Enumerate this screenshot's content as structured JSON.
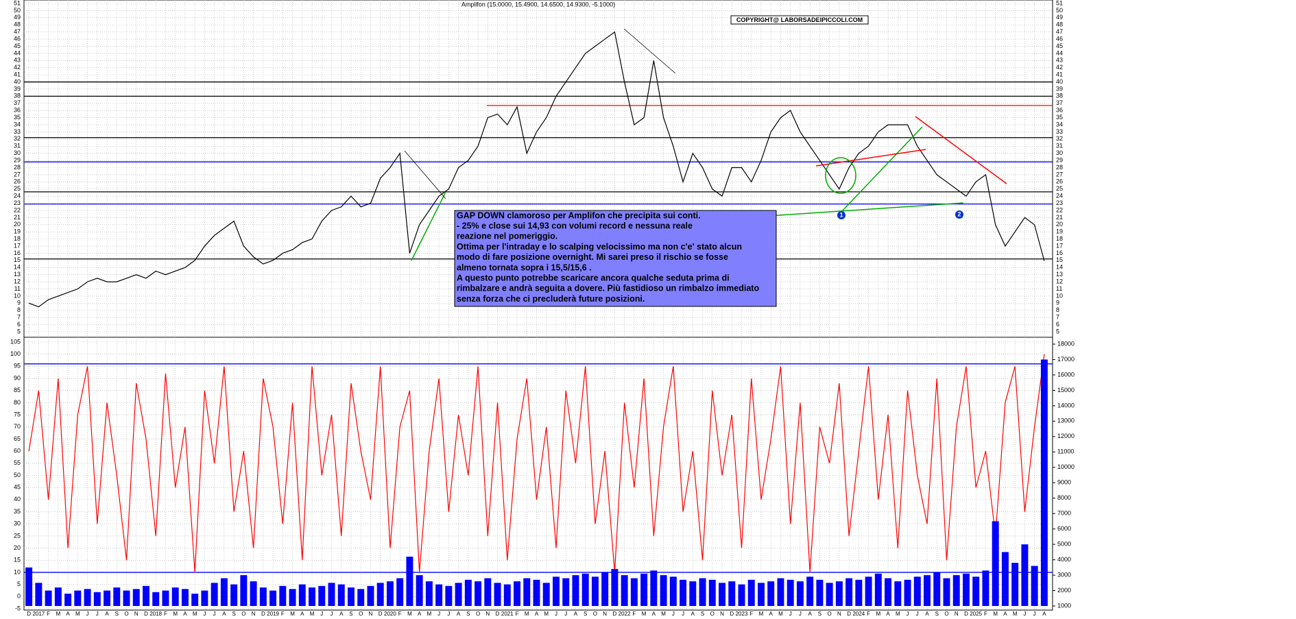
{
  "chart_data": [
    {
      "type": "line",
      "title": "Amplifon (15.0000, 15.4900, 14.6500, 14.9300, -5.1000)",
      "copyright": "COPYRIGHT@ LABORSADEIPICCOLI.COM",
      "categories": [
        "D",
        "2017",
        "F",
        "M",
        "A",
        "M",
        "J",
        "J",
        "A",
        "S",
        "O",
        "N",
        "D",
        "2018",
        "F",
        "M",
        "A",
        "M",
        "J",
        "J",
        "A",
        "S",
        "O",
        "N",
        "D",
        "2019",
        "F",
        "M",
        "A",
        "M",
        "J",
        "J",
        "A",
        "S",
        "O",
        "N",
        "D",
        "2020",
        "F",
        "M",
        "A",
        "M",
        "J",
        "J",
        "A",
        "S",
        "O",
        "N",
        "D",
        "2021",
        "F",
        "M",
        "A",
        "M",
        "J",
        "J",
        "A",
        "S",
        "O",
        "N",
        "D",
        "2022",
        "F",
        "M",
        "A",
        "M",
        "J",
        "J",
        "A",
        "S",
        "O",
        "N",
        "D",
        "2023",
        "F",
        "M",
        "A",
        "M",
        "J",
        "J",
        "A",
        "S",
        "O",
        "N",
        "D",
        "2024",
        "F",
        "M",
        "A",
        "M",
        "J",
        "J",
        "A",
        "S",
        "O",
        "N",
        "D",
        "2025",
        "F",
        "M",
        "A",
        "M",
        "J",
        "J",
        "A"
      ],
      "series": [
        {
          "name": "Amplifon",
          "color": "#000000",
          "values": [
            9,
            8.5,
            9.5,
            10,
            10.5,
            11,
            12,
            12.5,
            12,
            12,
            12.5,
            13,
            12.5,
            13.5,
            13,
            13.5,
            14,
            15,
            17,
            18.5,
            19.5,
            20.5,
            17,
            15.5,
            14.5,
            15,
            16,
            16.5,
            17.5,
            18,
            20.5,
            22,
            22.5,
            24,
            22.5,
            23,
            26.5,
            28,
            30,
            16,
            20,
            22,
            24,
            25,
            28,
            29,
            31,
            35,
            35.5,
            34,
            36.5,
            30,
            33,
            35,
            38,
            40,
            42,
            44,
            45,
            46,
            47,
            40,
            34,
            35,
            43,
            35,
            31,
            26,
            30,
            28,
            25,
            24,
            28,
            28,
            26,
            29,
            33,
            35,
            36,
            33,
            31,
            29,
            27,
            25,
            28,
            30,
            31,
            33,
            34,
            34,
            34,
            31,
            29,
            27,
            26,
            25,
            24,
            26,
            27,
            20,
            17,
            19,
            21,
            20,
            14.93
          ]
        }
      ],
      "hlines": [
        {
          "value": 40,
          "color": "#000000"
        },
        {
          "value": 38,
          "color": "#000000"
        },
        {
          "value": 36.7,
          "color": "#ff0000"
        },
        {
          "value": 32.2,
          "color": "#000000"
        },
        {
          "value": 28.8,
          "color": "#0000ff"
        },
        {
          "value": 24.6,
          "color": "#000000"
        },
        {
          "value": 22.9,
          "color": "#0000ff"
        },
        {
          "value": 15.2,
          "color": "#000000"
        }
      ],
      "markers": [
        "1",
        "2"
      ],
      "annotation": [
        "GAP DOWN clamoroso per Amplifon che precipita sui conti.",
        "- 25% e close sui 14,93 con volumi record e nessuna reale",
        "reazione nel pomeriggio.",
        "Ottima per l'intraday e lo scalping velocissimo ma non c'e' stato alcun",
        "modo di fare posizione overnight. Mi sarei preso il rischio se fosse",
        "almeno tornata sopra i 15,5/15,6 .",
        "A questo punto potrebbe scaricare ancora qualche seduta prima di",
        "rimbalzare e andrà seguita a dovere. Più fastidioso un rimbalzo immediato",
        "senza forza che ci precluderà future posizioni."
      ],
      "ylim": [
        5,
        51
      ],
      "yticks": [
        5,
        6,
        7,
        8,
        9,
        10,
        11,
        12,
        13,
        14,
        15,
        16,
        17,
        18,
        19,
        20,
        21,
        22,
        23,
        24,
        25,
        26,
        27,
        28,
        29,
        30,
        31,
        32,
        33,
        34,
        35,
        36,
        37,
        38,
        39,
        40,
        41,
        42,
        43,
        44,
        45,
        46,
        47,
        48,
        49,
        50,
        51
      ],
      "grid": true
    },
    {
      "type": "line",
      "series": [
        {
          "name": "Oscillator",
          "color": "#ff0000",
          "values": [
            60,
            85,
            40,
            90,
            20,
            75,
            95,
            30,
            80,
            50,
            15,
            88,
            65,
            25,
            92,
            45,
            70,
            10,
            85,
            55,
            95,
            35,
            60,
            20,
            90,
            70,
            30,
            80,
            15,
            95,
            50,
            75,
            25,
            88,
            60,
            40,
            95,
            20,
            70,
            85,
            10,
            60,
            90,
            35,
            75,
            50,
            95,
            25,
            80,
            15,
            65,
            90,
            40,
            70,
            20,
            85,
            55,
            95,
            30,
            60,
            10,
            80,
            45,
            90,
            25,
            70,
            95,
            35,
            60,
            15,
            85,
            50,
            75,
            20,
            90,
            40,
            65,
            95,
            30,
            80,
            10,
            70,
            55,
            88,
            25,
            60,
            95,
            40,
            75,
            20,
            85,
            50,
            30,
            90,
            15,
            70,
            95,
            45,
            60,
            25,
            80,
            95,
            35,
            70,
            100
          ]
        },
        {
          "name": "Volume",
          "type": "bar",
          "axis": "y2",
          "color": "#0000ff",
          "values": [
            3500,
            2500,
            2000,
            2200,
            1800,
            2000,
            2100,
            1900,
            2000,
            2200,
            2000,
            2100,
            2300,
            1900,
            2000,
            2200,
            2100,
            1800,
            2000,
            2500,
            2800,
            2400,
            3000,
            2600,
            2200,
            2000,
            2300,
            2100,
            2400,
            2200,
            2300,
            2500,
            2400,
            2200,
            2100,
            2300,
            2500,
            2600,
            2800,
            4200,
            3000,
            2600,
            2400,
            2300,
            2500,
            2700,
            2600,
            2800,
            2500,
            2400,
            2600,
            2800,
            2700,
            2500,
            2900,
            2800,
            3000,
            3100,
            2900,
            3200,
            3400,
            3000,
            2800,
            3100,
            3300,
            3000,
            2900,
            2700,
            2600,
            2800,
            2700,
            2500,
            2600,
            2400,
            2700,
            2500,
            2600,
            2800,
            2700,
            2600,
            2900,
            2700,
            2500,
            2600,
            2800,
            2700,
            2900,
            3100,
            2800,
            2600,
            2700,
            2900,
            3000,
            3200,
            2800,
            3000,
            3100,
            2900,
            3300,
            6500,
            4500,
            3800,
            5000,
            3600,
            17000
          ]
        }
      ],
      "hlines": [
        {
          "value": 96,
          "color": "#0000ff"
        },
        {
          "value": 10,
          "color": "#0000ff"
        }
      ],
      "ylim": [
        -5,
        105
      ],
      "yticks": [
        -5,
        0,
        5,
        10,
        15,
        20,
        25,
        30,
        35,
        40,
        45,
        50,
        55,
        60,
        65,
        70,
        75,
        80,
        85,
        90,
        95,
        100,
        105
      ],
      "y2lim": [
        1000,
        18000
      ],
      "y2ticks": [
        1000,
        2000,
        3000,
        4000,
        5000,
        6000,
        7000,
        8000,
        9000,
        10000,
        11000,
        12000,
        13000,
        14000,
        15000,
        16000,
        17000,
        18000
      ],
      "grid": true
    }
  ]
}
